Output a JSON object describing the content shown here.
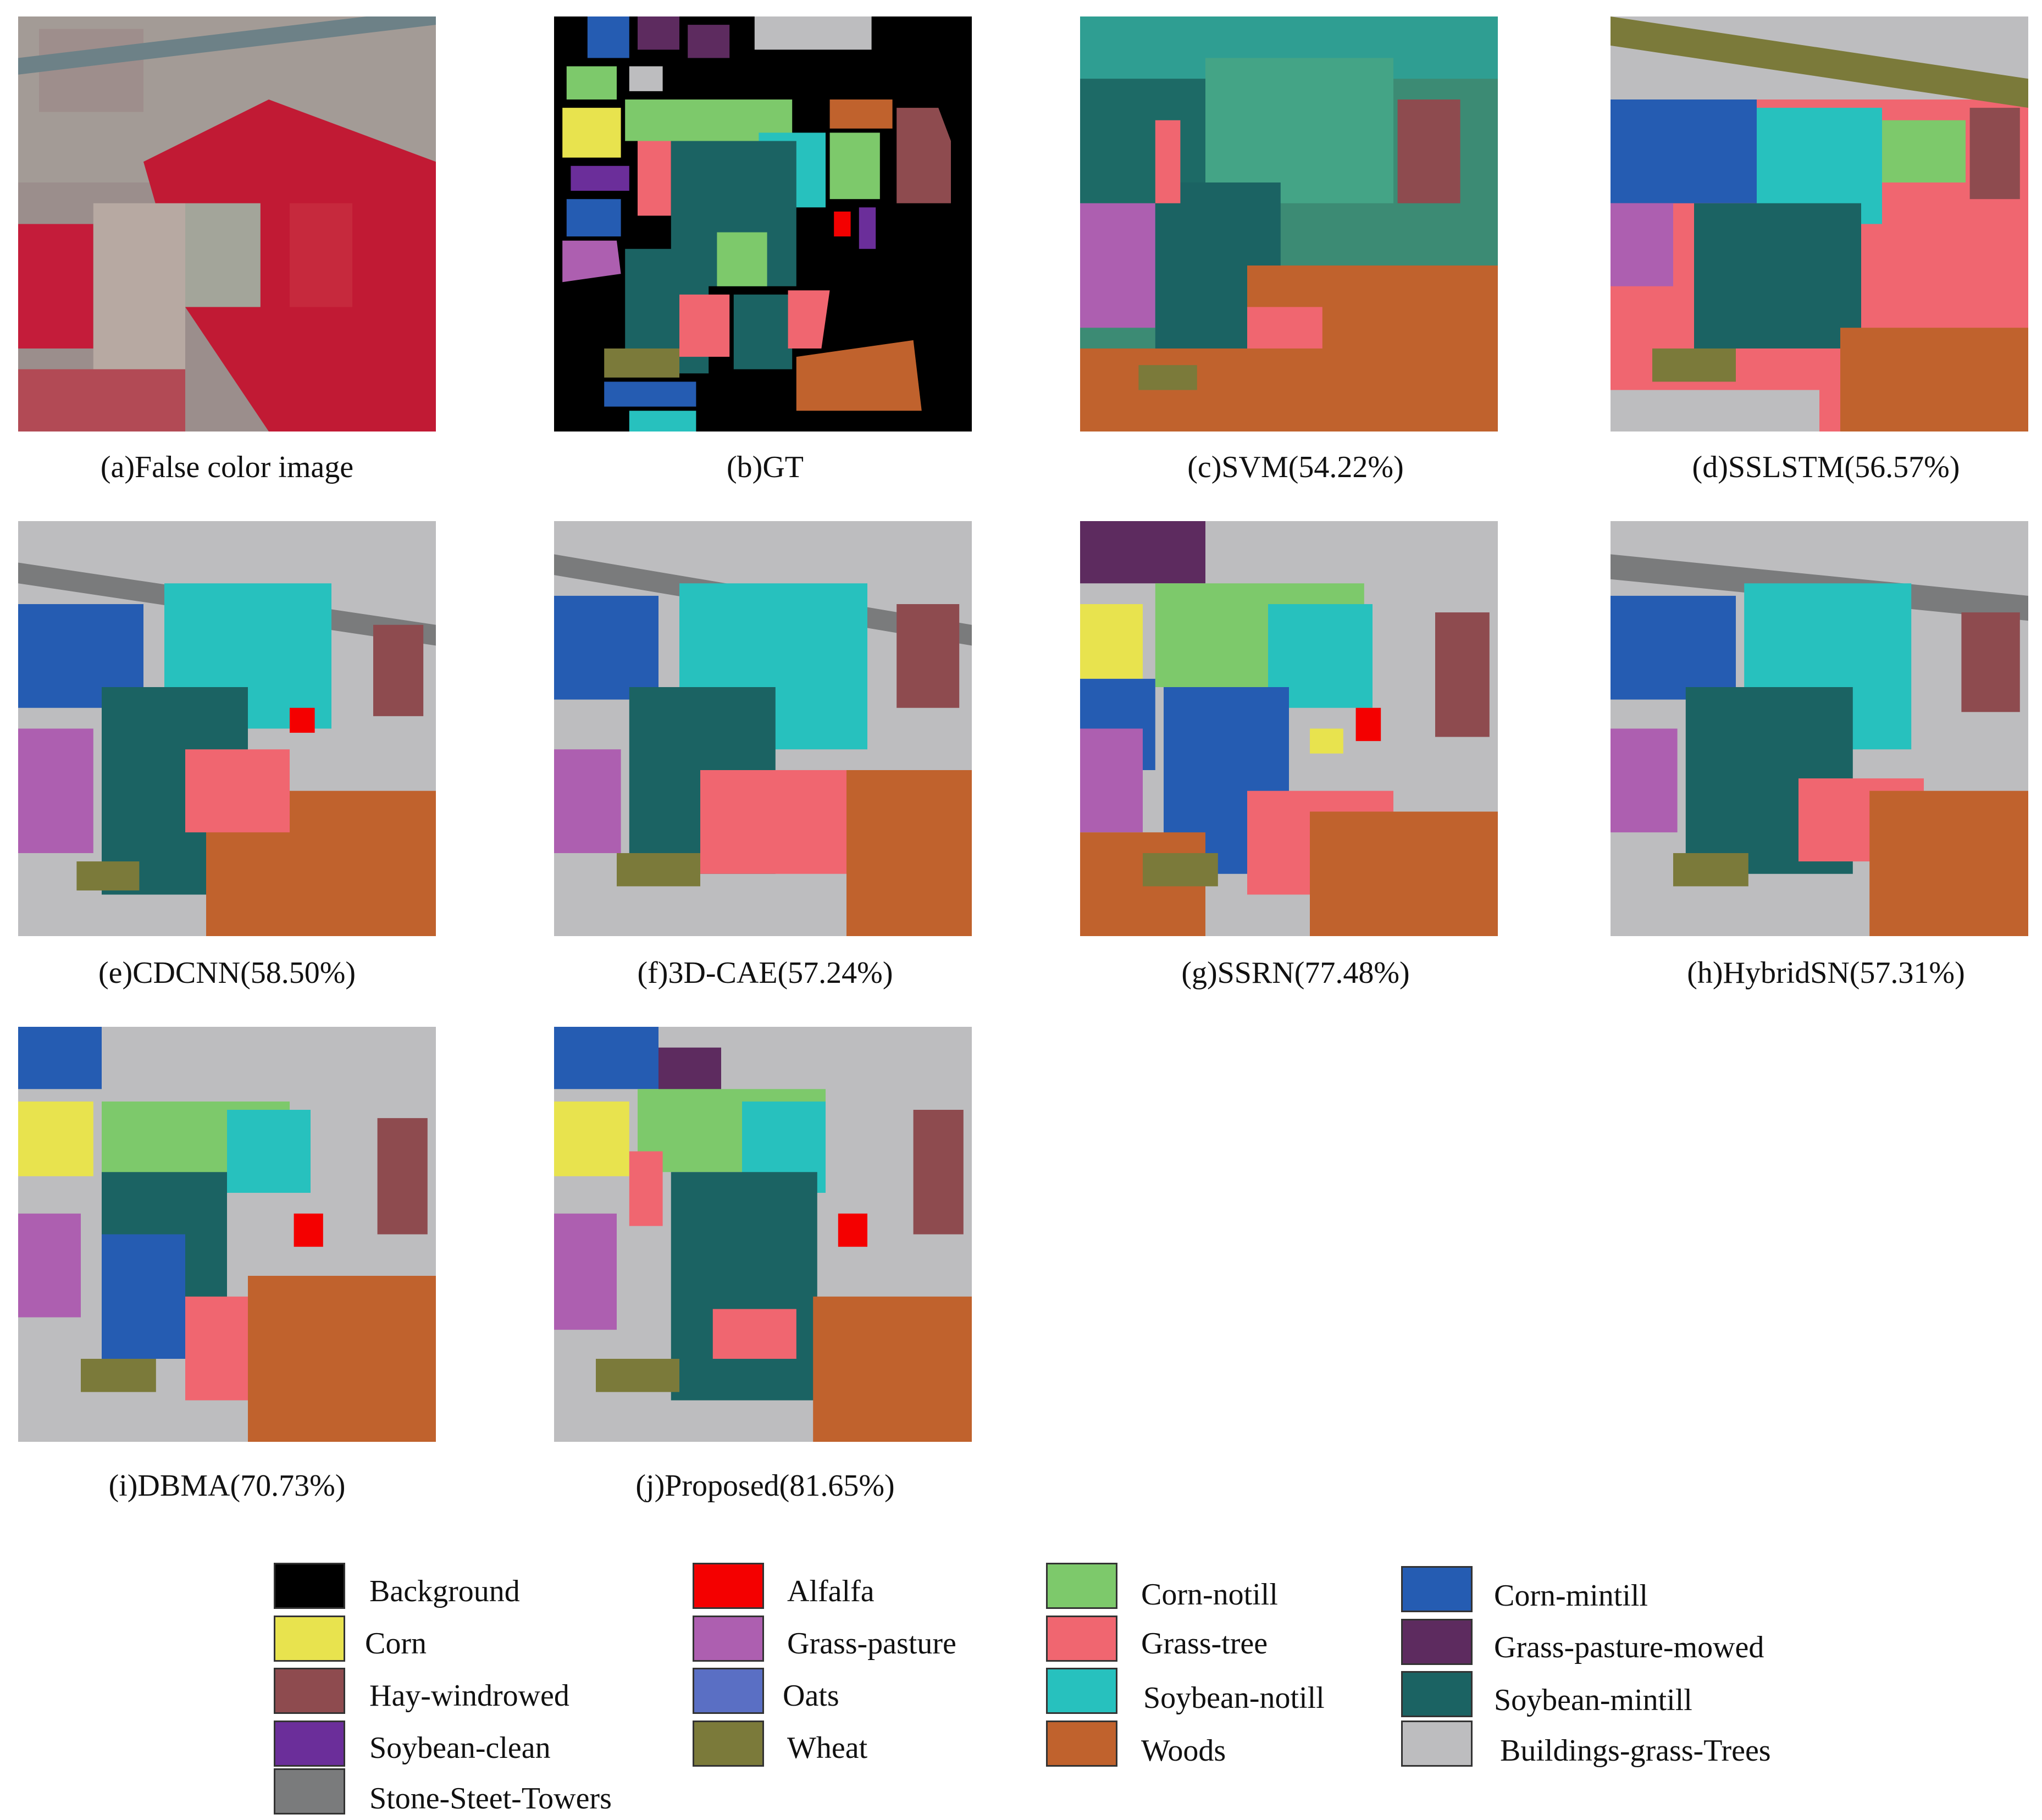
{
  "panels": [
    {
      "id": "a",
      "caption": "(a)False color image"
    },
    {
      "id": "b",
      "caption": "(b)GT"
    },
    {
      "id": "c",
      "caption": "(c)SVM(54.22%)"
    },
    {
      "id": "d",
      "caption": "(d)SSLSTM(56.57%)"
    },
    {
      "id": "e",
      "caption": "(e)CDCNN(58.50%)"
    },
    {
      "id": "f",
      "caption": "(f)3D-CAE(57.24%)"
    },
    {
      "id": "g",
      "caption": "(g)SSRN(77.48%)"
    },
    {
      "id": "h",
      "caption": "(h)HybridSN(57.31%)"
    },
    {
      "id": "i",
      "caption": "(i)DBMA(70.73%)"
    },
    {
      "id": "j",
      "caption": "(j)Proposed(81.65%)"
    }
  ],
  "legend": [
    {
      "label": "Background",
      "color": "#000000"
    },
    {
      "label": "Corn",
      "color": "#e8e34e"
    },
    {
      "label": "Hay-windrowed",
      "color": "#8e4b4f"
    },
    {
      "label": "Soybean-clean",
      "color": "#6b2e9a"
    },
    {
      "label": "Stone-Steet-Towers",
      "color": "#7a7b7c"
    },
    {
      "label": "Alfalfa",
      "color": "#f40000"
    },
    {
      "label": "Grass-pasture",
      "color": "#ad5fb0"
    },
    {
      "label": "Oats",
      "color": "#5a6fc4"
    },
    {
      "label": "Wheat",
      "color": "#7b7a3a"
    },
    {
      "label": "Corn-notill",
      "color": "#7dc96b"
    },
    {
      "label": "Grass-tree",
      "color": "#f06670"
    },
    {
      "label": "Soybean-notill",
      "color": "#27c1be"
    },
    {
      "label": "Woods",
      "color": "#c0622d"
    },
    {
      "label": "Corn-mintill",
      "color": "#255cb2"
    },
    {
      "label": "Grass-pasture-mowed",
      "color": "#5d2b5f"
    },
    {
      "label": "Soybean-mintill",
      "color": "#1b6363"
    },
    {
      "label": "Buildings-grass-Trees",
      "color": "#bdbdbf"
    }
  ]
}
